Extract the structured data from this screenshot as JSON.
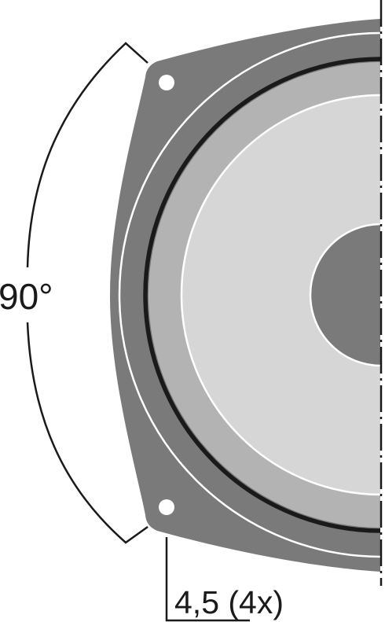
{
  "annotations": {
    "angle_label": "90°",
    "hole_label": "4,5 (4x)"
  },
  "colors": {
    "frame": "#7a7a7a",
    "surround": "#b3b3b3",
    "cone": "#d6d6d6",
    "dust_cap": "#7a7a7a",
    "outline": "#1a1a1a",
    "highlight": "#ffffff"
  }
}
